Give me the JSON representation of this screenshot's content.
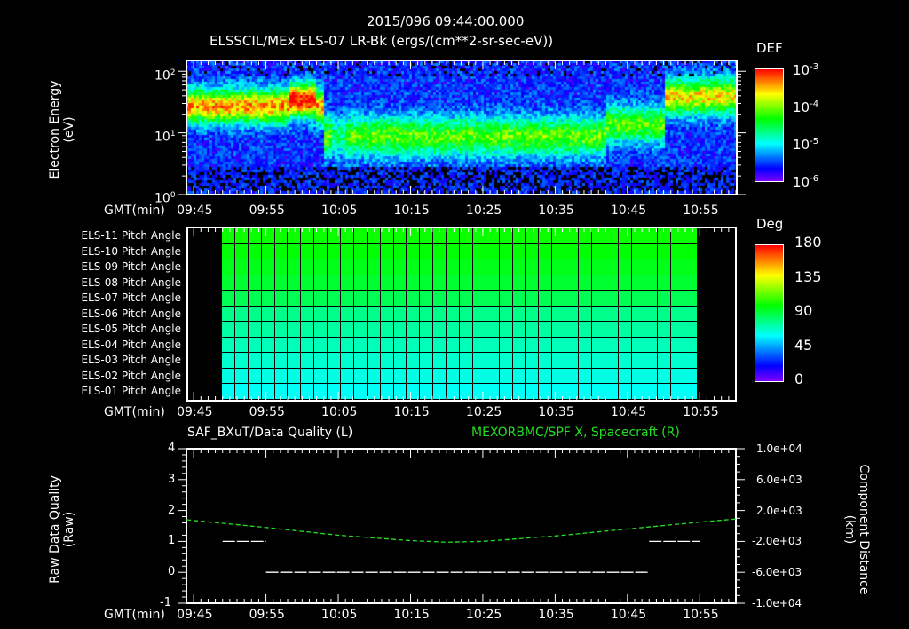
{
  "header": {
    "timestamp": "2015/096 09:44:00.000",
    "title": "ELSSCIL/MEx ELS-07 LR-Bk  (ergs/(cm**2-sr-sec-eV))"
  },
  "x_axis": {
    "label": "GMT(min)",
    "ticks": [
      "09:45",
      "09:55",
      "10:05",
      "10:15",
      "10:25",
      "10:35",
      "10:45",
      "10:55"
    ]
  },
  "colors": {
    "background": "#000000",
    "axes": "#ffffff",
    "right_series": "#22e022",
    "left_series": "#ffffff"
  },
  "panel1": {
    "ylabel": "Electron Energy",
    "yunit": "(eV)",
    "yticks": [
      {
        "base": "10",
        "exp": "2"
      },
      {
        "base": "10",
        "exp": "1"
      },
      {
        "base": "10",
        "exp": "0"
      }
    ],
    "colorbar": {
      "title": "DEF",
      "ticks": [
        {
          "base": "10",
          "exp": "-3"
        },
        {
          "base": "10",
          "exp": "-4"
        },
        {
          "base": "10",
          "exp": "-5"
        },
        {
          "base": "10",
          "exp": "-6"
        }
      ]
    }
  },
  "panel2": {
    "row_labels": [
      "ELS-11 Pitch Angle",
      "ELS-10 Pitch Angle",
      "ELS-09 Pitch Angle",
      "ELS-08 Pitch Angle",
      "ELS-07 Pitch Angle",
      "ELS-06 Pitch Angle",
      "ELS-05 Pitch Angle",
      "ELS-04 Pitch Angle",
      "ELS-03 Pitch Angle",
      "ELS-02 Pitch Angle",
      "ELS-01 Pitch Angle"
    ],
    "colorbar": {
      "title": "Deg",
      "ticks": [
        "180",
        "135",
        "90",
        "45",
        "0"
      ]
    }
  },
  "panel3": {
    "left_title": "SAF_BXuT/Data Quality (L)",
    "right_title": "MEXORBMC/SPF X, Spacecraft (R)",
    "ylabel_left": "Raw Data Quality",
    "yunit_left": "(Raw)",
    "ylabel_right": "Component Distance",
    "yunit_right": "(km)",
    "yticks_left": [
      "4",
      "3",
      "2",
      "1",
      "0",
      "-1"
    ],
    "yticks_right": [
      "1.0e+04",
      "6.0e+03",
      "2.0e+03",
      "-2.0e+03",
      "-6.0e+03",
      "-1.0e+04"
    ]
  },
  "chart_data": [
    {
      "type": "heatmap",
      "title": "ELSSCIL/MEx ELS-07 LR-Bk (ergs/(cm**2-sr-sec-eV))",
      "subtitle": "2015/096 09:44:00.000",
      "xlabel": "GMT(min)",
      "ylabel": "Electron Energy (eV)",
      "yscale": "log",
      "ylim": [
        1,
        150
      ],
      "x_ticks": [
        "09:45",
        "09:55",
        "10:05",
        "10:15",
        "10:25",
        "10:35",
        "10:45",
        "10:55"
      ],
      "xlim": [
        "09:44",
        "11:00"
      ],
      "colorbar": {
        "label": "DEF",
        "scale": "log",
        "range": [
          1e-06,
          0.001
        ]
      },
      "features": [
        {
          "time_range": [
            "09:44",
            "10:03"
          ],
          "energy_peak_eV": 25,
          "level": "~2e-4 (yellow-green)"
        },
        {
          "time_range": [
            "09:59",
            "10:02"
          ],
          "energy_peak_eV": 35,
          "level": "~5e-4 (orange)"
        },
        {
          "time_range": [
            "10:03",
            "10:42"
          ],
          "energy_peak_eV": 8,
          "level": "~2e-5 (cyan-green)"
        },
        {
          "time_range": [
            "10:42",
            "10:50"
          ],
          "energy_peak_eV": 15,
          "level": "~3e-5"
        },
        {
          "time_range": [
            "10:50",
            "11:00"
          ],
          "energy_peak_eV": 40,
          "level": "~1e-4 (green-yellow)"
        }
      ]
    },
    {
      "type": "heatmap",
      "xlabel": "GMT(min)",
      "categories": [
        "ELS-11",
        "ELS-10",
        "ELS-09",
        "ELS-08",
        "ELS-07",
        "ELS-06",
        "ELS-05",
        "ELS-04",
        "ELS-03",
        "ELS-02",
        "ELS-01"
      ],
      "data_time_range": [
        "09:49",
        "10:55"
      ],
      "values_deg": [
        103,
        101,
        99,
        97,
        94,
        88,
        84,
        80,
        76,
        72,
        69
      ],
      "colorbar": {
        "label": "Deg",
        "range": [
          0,
          180
        ],
        "ticks": [
          0,
          45,
          90,
          135,
          180
        ]
      }
    },
    {
      "type": "line",
      "xlabel": "GMT(min)",
      "xlim": [
        "09:44",
        "11:00"
      ],
      "series": [
        {
          "name": "SAF_BXuT/Data Quality (L)",
          "axis": "left",
          "ylim": [
            -1,
            4
          ],
          "x": [
            "09:49",
            "09:55",
            "09:55",
            "10:48",
            "10:48",
            "10:55"
          ],
          "y": [
            1,
            1,
            0,
            0,
            1,
            1
          ]
        },
        {
          "name": "MEXORBMC/SPF X, Spacecraft (R)",
          "axis": "right",
          "ylim": [
            -10000,
            10000
          ],
          "x": [
            "09:44",
            "09:55",
            "10:05",
            "10:15",
            "10:20",
            "10:25",
            "10:35",
            "10:45",
            "10:55",
            "11:00"
          ],
          "y": [
            800,
            -200,
            -1200,
            -1900,
            -2100,
            -2000,
            -1300,
            -400,
            500,
            900
          ]
        }
      ],
      "ylabel_left": "Raw Data Quality (Raw)",
      "ylabel_right": "Component Distance (km)"
    }
  ]
}
